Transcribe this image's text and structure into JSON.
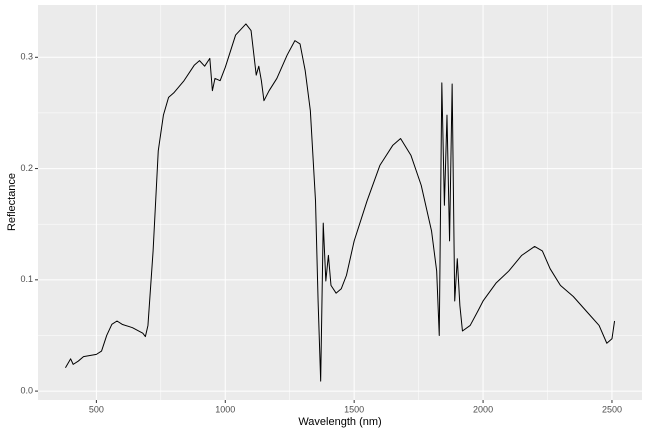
{
  "chart_data": {
    "type": "line",
    "x_label": "Wavelength (nm)",
    "y_label": "Reflectance",
    "x": [
      380,
      400,
      410,
      430,
      450,
      500,
      520,
      540,
      560,
      580,
      600,
      640,
      680,
      690,
      700,
      720,
      740,
      760,
      780,
      800,
      840,
      880,
      900,
      920,
      940,
      950,
      960,
      980,
      1000,
      1040,
      1080,
      1100,
      1120,
      1130,
      1140,
      1150,
      1170,
      1200,
      1240,
      1270,
      1290,
      1310,
      1330,
      1350,
      1360,
      1370,
      1380,
      1390,
      1400,
      1410,
      1430,
      1450,
      1470,
      1500,
      1550,
      1600,
      1650,
      1680,
      1720,
      1760,
      1800,
      1820,
      1830,
      1840,
      1850,
      1860,
      1870,
      1880,
      1890,
      1900,
      1910,
      1920,
      1950,
      1980,
      2000,
      2050,
      2100,
      2150,
      2200,
      2230,
      2260,
      2300,
      2350,
      2400,
      2450,
      2480,
      2500,
      2510
    ],
    "series": [
      {
        "name": "Reflectance",
        "color": "#000000",
        "values": [
          0.021,
          0.029,
          0.024,
          0.027,
          0.031,
          0.033,
          0.036,
          0.05,
          0.06,
          0.063,
          0.06,
          0.057,
          0.052,
          0.049,
          0.059,
          0.126,
          0.216,
          0.248,
          0.264,
          0.268,
          0.279,
          0.293,
          0.297,
          0.292,
          0.299,
          0.27,
          0.281,
          0.279,
          0.291,
          0.32,
          0.33,
          0.324,
          0.284,
          0.292,
          0.279,
          0.261,
          0.27,
          0.281,
          0.302,
          0.315,
          0.312,
          0.288,
          0.252,
          0.171,
          0.081,
          0.009,
          0.151,
          0.099,
          0.122,
          0.095,
          0.088,
          0.092,
          0.104,
          0.135,
          0.171,
          0.203,
          0.221,
          0.227,
          0.212,
          0.185,
          0.144,
          0.108,
          0.05,
          0.277,
          0.167,
          0.248,
          0.135,
          0.276,
          0.081,
          0.119,
          0.077,
          0.054,
          0.059,
          0.072,
          0.081,
          0.097,
          0.108,
          0.122,
          0.13,
          0.126,
          0.11,
          0.095,
          0.085,
          0.072,
          0.059,
          0.043,
          0.047,
          0.063
        ]
      }
    ],
    "xlim": [
      273.5,
      2616.5
    ],
    "xticks": [
      500,
      1000,
      1500,
      2000,
      2500
    ],
    "ylim": [
      -0.008,
      0.347
    ],
    "yticks": [
      {
        "value": 0,
        "label": "0.0"
      },
      0.1,
      0.2,
      0.3
    ],
    "grid": true
  }
}
